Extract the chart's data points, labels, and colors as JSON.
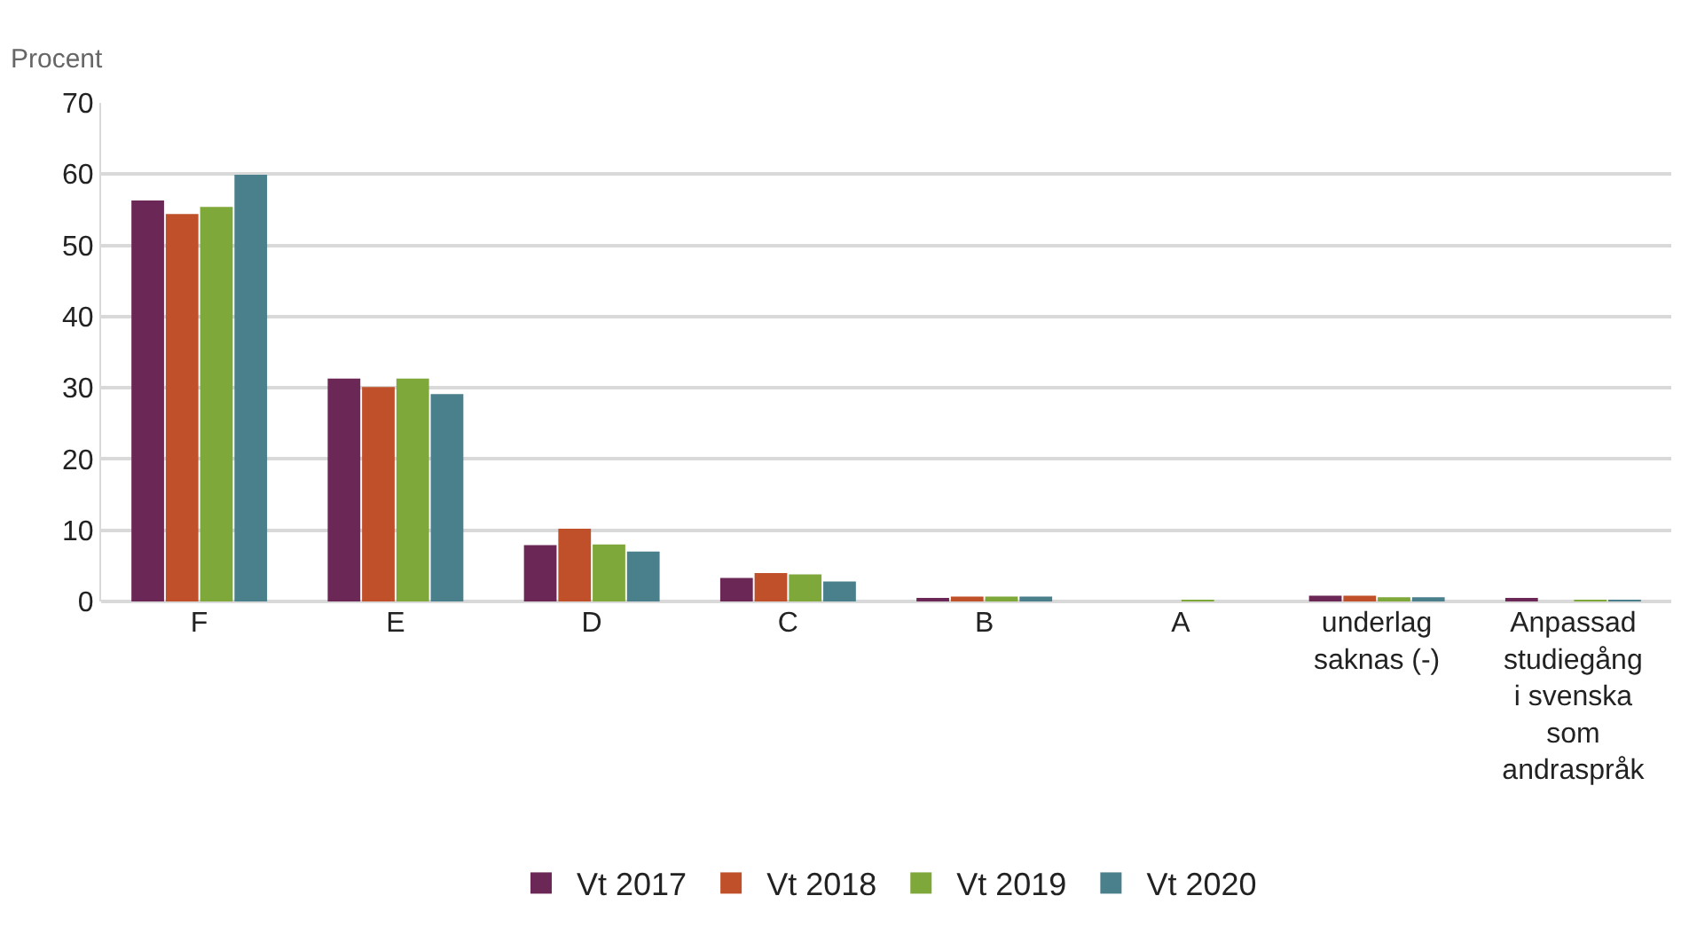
{
  "chart_data": {
    "type": "bar",
    "ylabel": "Procent",
    "categories": [
      "F",
      "E",
      "D",
      "C",
      "B",
      "A",
      "underlag saknas (-)",
      "Anpassad studiegång i svenska som andraspråk"
    ],
    "series": [
      {
        "name": "Vt 2017",
        "color": "#6b2857",
        "values": [
          56.3,
          31.3,
          7.9,
          3.3,
          0.3,
          0,
          0.8,
          0.3
        ]
      },
      {
        "name": "Vt 2018",
        "color": "#c0502a",
        "values": [
          54.4,
          30.1,
          10.2,
          4.0,
          0.7,
          0,
          0.8,
          0
        ]
      },
      {
        "name": "Vt 2019",
        "color": "#7fa83a",
        "values": [
          55.4,
          31.3,
          8.0,
          3.8,
          0.7,
          0.2,
          0.6,
          0.2
        ]
      },
      {
        "name": "Vt 2020",
        "color": "#4a7f8c",
        "values": [
          59.9,
          29.1,
          7.0,
          2.8,
          0.7,
          0,
          0.6,
          0.2
        ]
      }
    ],
    "ylim": [
      0,
      70
    ],
    "yticks": [
      0,
      10,
      20,
      30,
      40,
      50,
      60,
      70
    ],
    "grid": "y",
    "legend": "bottom"
  }
}
